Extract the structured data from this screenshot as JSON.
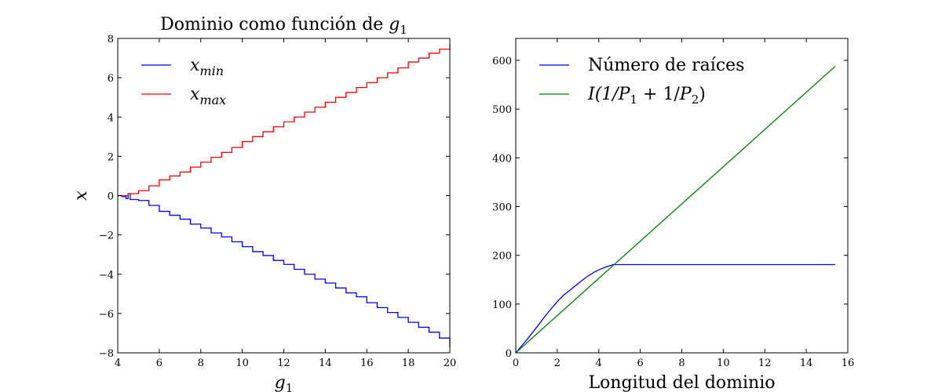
{
  "chart_data": [
    {
      "type": "line",
      "title": "Dominio como función de",
      "title_math": "g",
      "title_math_sub": "1",
      "xlabel": "g",
      "xlabel_sub": "1",
      "ylabel": "x",
      "xlim": [
        4,
        20
      ],
      "ylim": [
        -8,
        8
      ],
      "xticks": [
        4,
        6,
        8,
        10,
        12,
        14,
        16,
        18,
        20
      ],
      "yticks": [
        -8,
        -6,
        -4,
        -2,
        0,
        2,
        4,
        6,
        8
      ],
      "ytick_labels": [
        "−8",
        "−6",
        "−4",
        "−2",
        "0",
        "2",
        "4",
        "6",
        "8"
      ],
      "legend_position": "upper-left",
      "series": [
        {
          "name": "x",
          "name_sub": "min",
          "color": "#0000ff",
          "x": [
            4,
            4.2,
            4.4,
            4.5,
            4.6,
            5,
            5.5,
            6,
            6.5,
            7,
            7.5,
            8,
            8.5,
            9,
            9.5,
            10,
            10.5,
            11,
            11.5,
            12,
            12.5,
            13,
            13.5,
            14,
            14.5,
            15,
            15.5,
            16,
            16.5,
            17,
            17.5,
            18,
            18.5,
            19,
            19.5,
            20
          ],
          "y": [
            0,
            -0.05,
            -0.15,
            0.1,
            -0.2,
            -0.25,
            -0.5,
            -0.8,
            -1.0,
            -1.2,
            -1.45,
            -1.65,
            -1.9,
            -2.1,
            -2.35,
            -2.6,
            -2.85,
            -3.05,
            -3.3,
            -3.5,
            -3.75,
            -4.0,
            -4.25,
            -4.45,
            -4.7,
            -4.95,
            -5.15,
            -5.45,
            -5.7,
            -5.95,
            -6.2,
            -6.45,
            -6.7,
            -6.95,
            -7.25,
            -7.7
          ]
        },
        {
          "name": "x",
          "name_sub": "max",
          "color": "#ff0000",
          "x": [
            4,
            4.5,
            5,
            5.5,
            6,
            6.5,
            7,
            7.5,
            8,
            8.5,
            9,
            9.5,
            10,
            10.5,
            11,
            11.5,
            12,
            12.5,
            13,
            13.5,
            14,
            14.5,
            15,
            15.5,
            16,
            16.5,
            17,
            17.5,
            18,
            18.5,
            19,
            19.5,
            20
          ],
          "y": [
            0,
            0.1,
            0.25,
            0.5,
            0.8,
            1.0,
            1.2,
            1.45,
            1.7,
            1.95,
            2.2,
            2.45,
            2.75,
            3.0,
            3.25,
            3.5,
            3.75,
            4.0,
            4.25,
            4.5,
            4.75,
            5.0,
            5.25,
            5.5,
            5.75,
            6.0,
            6.25,
            6.5,
            6.8,
            7.0,
            7.25,
            7.45,
            7.7
          ]
        }
      ]
    },
    {
      "type": "line",
      "title": "",
      "xlabel": "Longitud del dominio",
      "ylabel": "",
      "xlim": [
        0,
        16
      ],
      "ylim": [
        0,
        645
      ],
      "xticks": [
        0,
        2,
        4,
        6,
        8,
        10,
        12,
        14,
        16
      ],
      "yticks": [
        0,
        100,
        200,
        300,
        400,
        500,
        600
      ],
      "legend_position": "upper-left",
      "series": [
        {
          "name": "Número de raíces",
          "color": "#0000ff",
          "x": [
            0,
            0.5,
            1,
            1.5,
            2,
            2.3,
            2.6,
            2.8,
            3.0,
            3.3,
            3.5,
            3.8,
            4.1,
            4.4,
            4.7,
            5,
            15.4
          ],
          "y": [
            0,
            25,
            52,
            80,
            105,
            118,
            128,
            135,
            142,
            152,
            158,
            166,
            172,
            177,
            181,
            181,
            181
          ]
        },
        {
          "name": "I(1/P",
          "name_parts": [
            "I(1/",
            "P",
            "1",
            " + 1/",
            "P",
            "2",
            ")"
          ],
          "color": "#008000",
          "x": [
            0,
            15.4
          ],
          "y": [
            0,
            588
          ]
        }
      ]
    }
  ]
}
